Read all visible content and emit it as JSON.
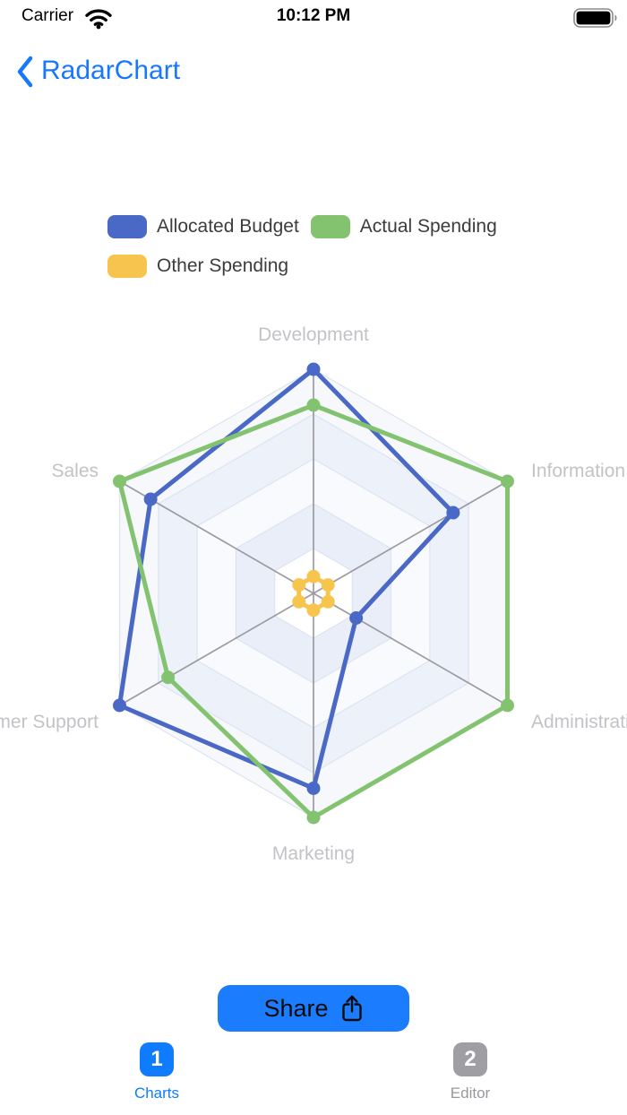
{
  "status_bar": {
    "carrier": "Carrier",
    "time": "10:12 PM",
    "icons": {
      "wifi": "wifi-icon",
      "battery": "battery-full-icon"
    }
  },
  "nav": {
    "back_icon": "chevron-back-icon",
    "title": "RadarChart"
  },
  "legend": {
    "items": [
      {
        "label": "Allocated Budget"
      },
      {
        "label": "Actual Spending"
      },
      {
        "label": "Other Spending"
      }
    ]
  },
  "chart_data": {
    "type": "radar",
    "indicators": [
      "Development",
      "Information Technology",
      "Administration",
      "Marketing",
      "Customer Support",
      "Sales"
    ],
    "visible_label_fragments": [
      "Development",
      "Informati",
      "Administr",
      "Marketing",
      "r Support",
      "Sales"
    ],
    "value_unit": "percent_of_axis_max (no numeric ticks shown; estimated from pixel radii)",
    "rings": 5,
    "start_axis": "top",
    "direction": "clockwise",
    "series": [
      {
        "name": "Allocated Budget",
        "color": "#4a68c6",
        "values": [
          100,
          72,
          22,
          87,
          100,
          84
        ]
      },
      {
        "name": "Actual Spending",
        "color": "#83c370",
        "values": [
          84,
          100,
          100,
          100,
          75,
          100
        ]
      },
      {
        "name": "Other Spending",
        "color": "#f7c54e",
        "values": [
          7.5,
          7.5,
          7.5,
          7.5,
          7.5,
          7.5
        ]
      }
    ],
    "grid": {
      "spoke_color": "#9b9ba1",
      "ring_color": "#dce3f2",
      "band_colors_inner_to_outer": [
        "#ffffff",
        "#eaeef8",
        "#f8fafd",
        "#edf1f9",
        "#f6f8fc"
      ]
    },
    "legend_position": "top",
    "axis_label_color": "#c3c3c7"
  },
  "share": {
    "label": "Share",
    "icon": "share-icon"
  },
  "tab_bar": {
    "items": [
      {
        "badge": "1",
        "label": "Charts"
      },
      {
        "badge": "2",
        "label": "Editor"
      }
    ]
  }
}
